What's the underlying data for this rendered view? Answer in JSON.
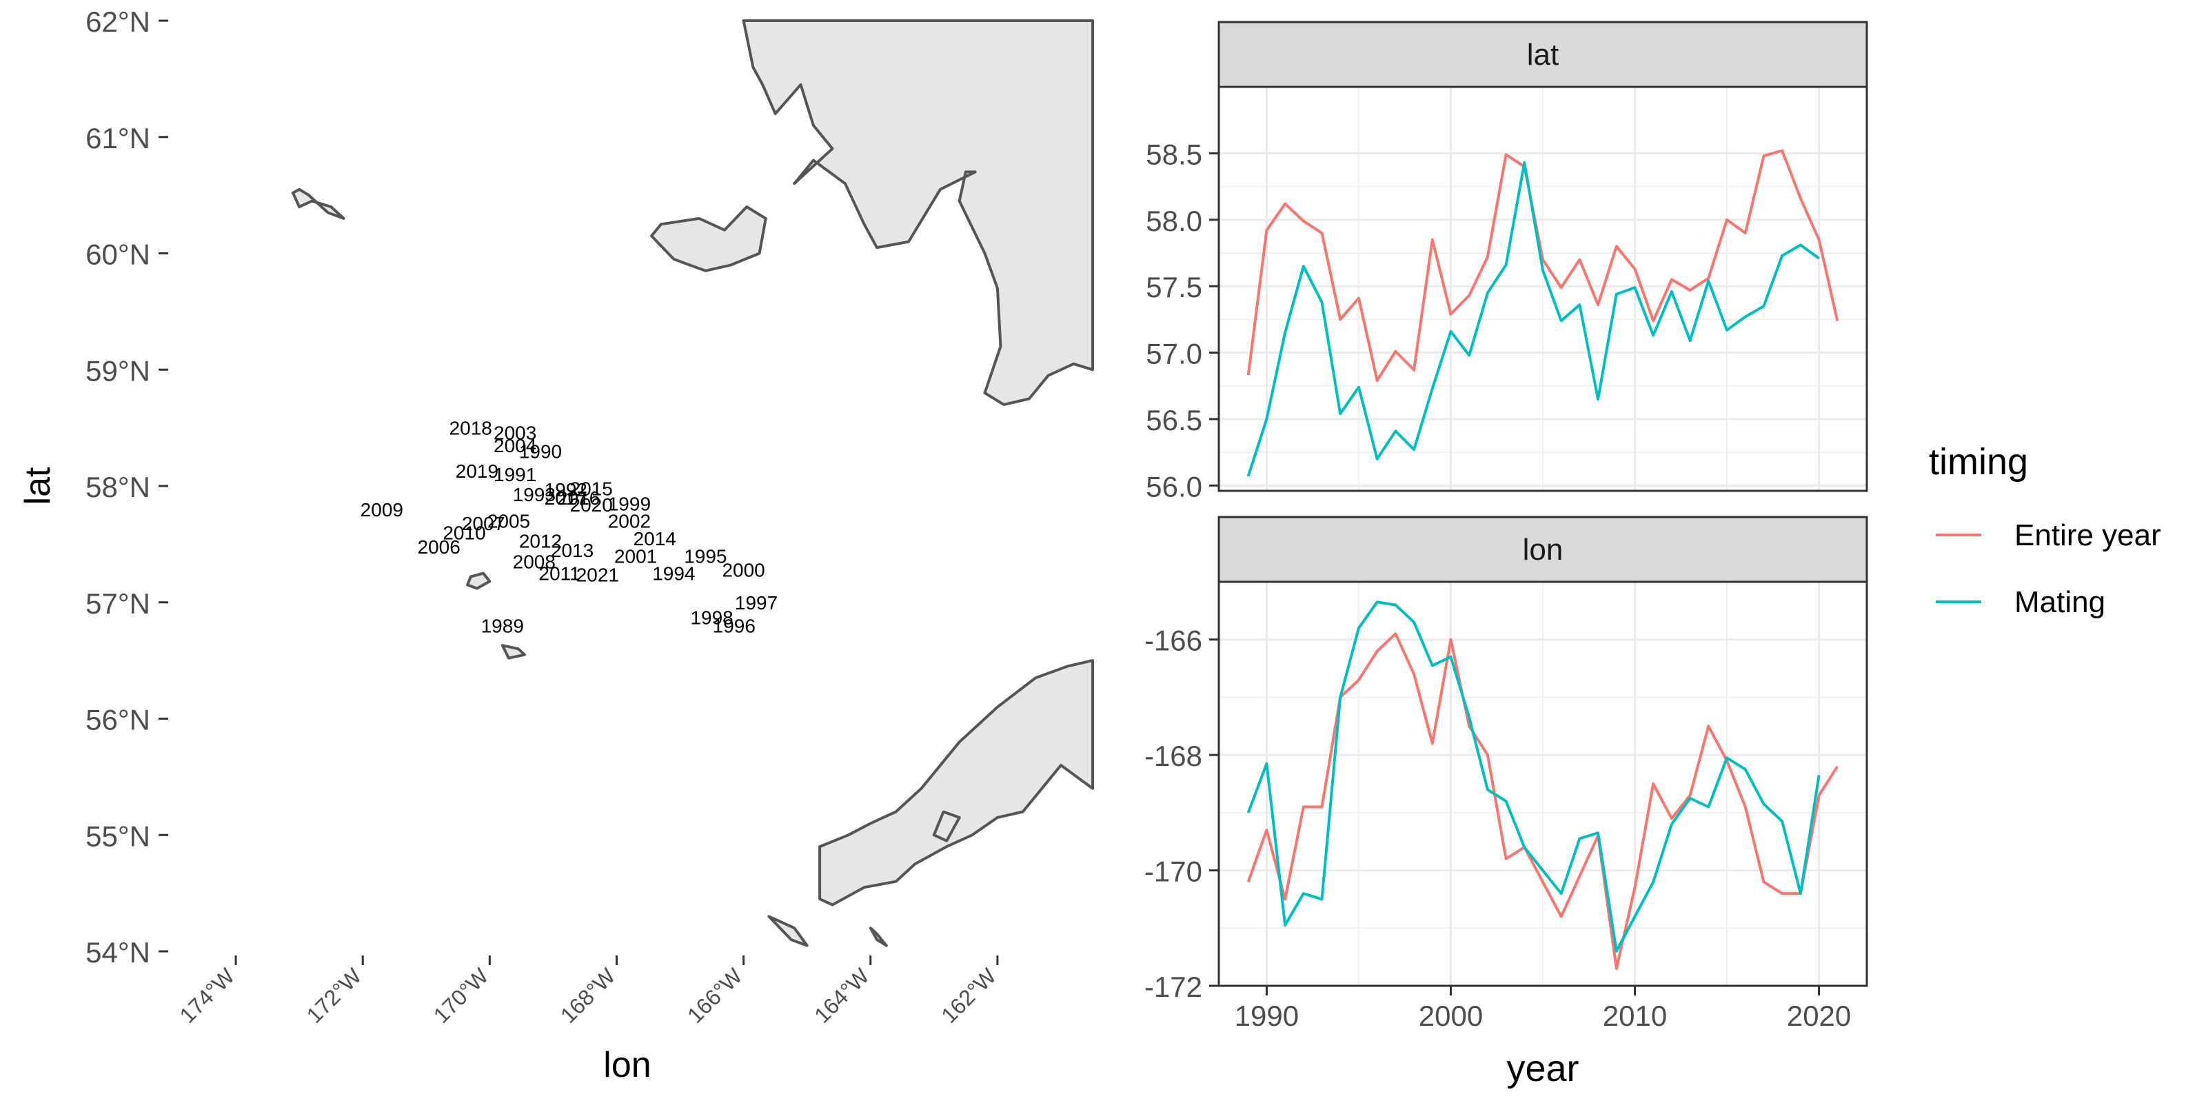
{
  "chart_data": [
    {
      "type": "map",
      "xlabel": "lon",
      "ylabel": "lat",
      "xlim": [
        -175,
        -160.5
      ],
      "ylim": [
        54,
        62
      ],
      "x_ticks": [
        {
          "value": -174,
          "label": "174°W"
        },
        {
          "value": -172,
          "label": "172°W"
        },
        {
          "value": -170,
          "label": "170°W"
        },
        {
          "value": -168,
          "label": "168°W"
        },
        {
          "value": -166,
          "label": "166°W"
        },
        {
          "value": -164,
          "label": "164°W"
        },
        {
          "value": -162,
          "label": "162°W"
        }
      ],
      "y_ticks": [
        {
          "value": 54,
          "label": "54°N"
        },
        {
          "value": 55,
          "label": "55°N"
        },
        {
          "value": 56,
          "label": "56°N"
        },
        {
          "value": 57,
          "label": "57°N"
        },
        {
          "value": 58,
          "label": "58°N"
        },
        {
          "value": 59,
          "label": "59°N"
        },
        {
          "value": 60,
          "label": "60°N"
        },
        {
          "value": 61,
          "label": "61°N"
        },
        {
          "value": 62,
          "label": "62°N"
        }
      ],
      "land_fill": "#e6e6e6",
      "coast_color": "#555555",
      "points": [
        {
          "label": "1989",
          "lon": -169.8,
          "lat": 56.8
        },
        {
          "label": "1990",
          "lon": -169.2,
          "lat": 58.3
        },
        {
          "label": "1991",
          "lon": -169.6,
          "lat": 58.1
        },
        {
          "label": "1992",
          "lon": -168.8,
          "lat": 57.97
        },
        {
          "label": "1993",
          "lon": -169.3,
          "lat": 57.93
        },
        {
          "label": "1994",
          "lon": -167.1,
          "lat": 57.25
        },
        {
          "label": "1995",
          "lon": -166.6,
          "lat": 57.4
        },
        {
          "label": "1996",
          "lon": -166.15,
          "lat": 56.8
        },
        {
          "label": "1997",
          "lon": -165.8,
          "lat": 57.0
        },
        {
          "label": "1998",
          "lon": -166.5,
          "lat": 56.87
        },
        {
          "label": "1999",
          "lon": -167.8,
          "lat": 57.85
        },
        {
          "label": "2000",
          "lon": -166.0,
          "lat": 57.28
        },
        {
          "label": "2001",
          "lon": -167.7,
          "lat": 57.4
        },
        {
          "label": "2002",
          "lon": -167.8,
          "lat": 57.7
        },
        {
          "label": "2003",
          "lon": -169.6,
          "lat": 58.46
        },
        {
          "label": "2004",
          "lon": -169.6,
          "lat": 58.35
        },
        {
          "label": "2005",
          "lon": -169.7,
          "lat": 57.7
        },
        {
          "label": "2006",
          "lon": -170.8,
          "lat": 57.48
        },
        {
          "label": "2007",
          "lon": -170.1,
          "lat": 57.68
        },
        {
          "label": "2008",
          "lon": -169.3,
          "lat": 57.35
        },
        {
          "label": "2009",
          "lon": -171.7,
          "lat": 57.8
        },
        {
          "label": "2010",
          "lon": -170.4,
          "lat": 57.6
        },
        {
          "label": "2011",
          "lon": -168.9,
          "lat": 57.25
        },
        {
          "label": "2012",
          "lon": -169.2,
          "lat": 57.53
        },
        {
          "label": "2013",
          "lon": -168.7,
          "lat": 57.45
        },
        {
          "label": "2014",
          "lon": -167.4,
          "lat": 57.55
        },
        {
          "label": "2015",
          "lon": -168.4,
          "lat": 57.98
        },
        {
          "label": "2016",
          "lon": -168.6,
          "lat": 57.9
        },
        {
          "label": "2017",
          "lon": -168.8,
          "lat": 57.9
        },
        {
          "label": "2018",
          "lon": -170.3,
          "lat": 58.5
        },
        {
          "label": "2019",
          "lon": -170.2,
          "lat": 58.13
        },
        {
          "label": "2020",
          "lon": -168.4,
          "lat": 57.84
        },
        {
          "label": "2021",
          "lon": -168.3,
          "lat": 57.24
        }
      ]
    },
    {
      "type": "line",
      "facets": [
        "lat",
        "lon"
      ],
      "xlabel": "year",
      "xlim": [
        1987.4,
        2022.6
      ],
      "x_ticks": [
        1990,
        2000,
        2010,
        2020
      ],
      "legend": {
        "title": "timing",
        "position": "right",
        "entries": [
          "Entire year",
          "Mating"
        ]
      },
      "colors": {
        "Entire year": "#f8766d",
        "Mating": "#00bfc4"
      },
      "panels": [
        {
          "facet": "lat",
          "ylim": [
            55.96,
            59.0
          ],
          "y_ticks": [
            "56.0",
            "56.5",
            "57.0",
            "57.5",
            "58.0",
            "58.5"
          ],
          "series": [
            {
              "name": "Entire year",
              "x": [
                1989,
                1990,
                1991,
                1992,
                1993,
                1994,
                1995,
                1996,
                1997,
                1998,
                1999,
                2000,
                2001,
                2002,
                2003,
                2004,
                2005,
                2006,
                2007,
                2008,
                2009,
                2010,
                2011,
                2012,
                2013,
                2014,
                2015,
                2016,
                2017,
                2018,
                2019,
                2020,
                2021
              ],
              "y": [
                56.83,
                57.92,
                58.12,
                57.99,
                57.9,
                57.25,
                57.41,
                56.79,
                57.01,
                56.87,
                57.85,
                57.29,
                57.43,
                57.72,
                58.49,
                58.4,
                57.7,
                57.49,
                57.7,
                57.36,
                57.8,
                57.63,
                57.24,
                57.55,
                57.47,
                57.56,
                58.0,
                57.9,
                58.48,
                58.52,
                58.16,
                57.85,
                57.24
              ]
            },
            {
              "name": "Mating",
              "x": [
                1989,
                1990,
                1991,
                1992,
                1993,
                1994,
                1995,
                1996,
                1997,
                1998,
                1999,
                2000,
                2001,
                2002,
                2003,
                2004,
                2005,
                2006,
                2007,
                2008,
                2009,
                2010,
                2011,
                2012,
                2013,
                2014,
                2015,
                2016,
                2017,
                2018,
                2019,
                2020
              ],
              "y": [
                56.07,
                56.5,
                57.15,
                57.65,
                57.38,
                56.54,
                56.74,
                56.2,
                56.41,
                56.27,
                56.73,
                57.16,
                56.98,
                57.45,
                57.66,
                58.43,
                57.62,
                57.24,
                57.36,
                56.65,
                57.44,
                57.49,
                57.13,
                57.46,
                57.09,
                57.54,
                57.17,
                57.27,
                57.35,
                57.73,
                57.81,
                57.71
              ]
            }
          ]
        },
        {
          "facet": "lon",
          "ylim": [
            -172,
            -165
          ],
          "y_ticks": [
            "-166",
            "-168",
            "-170",
            "-172"
          ],
          "series": [
            {
              "name": "Entire year",
              "x": [
                1989,
                1990,
                1991,
                1992,
                1993,
                1994,
                1995,
                1996,
                1997,
                1998,
                1999,
                2000,
                2001,
                2002,
                2003,
                2004,
                2005,
                2006,
                2007,
                2008,
                2009,
                2010,
                2011,
                2012,
                2013,
                2014,
                2015,
                2016,
                2017,
                2018,
                2019,
                2020,
                2021
              ],
              "y": [
                -170.2,
                -169.3,
                -170.5,
                -168.9,
                -168.9,
                -167.0,
                -166.7,
                -166.2,
                -165.9,
                -166.6,
                -167.8,
                -166.0,
                -167.5,
                -168.0,
                -169.8,
                -169.6,
                -170.2,
                -170.8,
                -170.1,
                -169.4,
                -171.7,
                -170.3,
                -168.5,
                -169.1,
                -168.7,
                -167.5,
                -168.1,
                -168.9,
                -170.2,
                -170.4,
                -170.4,
                -168.7,
                -168.2
              ]
            },
            {
              "name": "Mating",
              "x": [
                1989,
                1990,
                1991,
                1992,
                1993,
                1994,
                1995,
                1996,
                1997,
                1998,
                1999,
                2000,
                2001,
                2002,
                2003,
                2004,
                2005,
                2006,
                2007,
                2008,
                2009,
                2010,
                2011,
                2012,
                2013,
                2014,
                2015,
                2016,
                2017,
                2018,
                2019,
                2020
              ],
              "y": [
                -169.0,
                -168.15,
                -170.95,
                -170.4,
                -170.5,
                -167.0,
                -165.8,
                -165.35,
                -165.4,
                -165.7,
                -166.45,
                -166.3,
                -167.35,
                -168.6,
                -168.8,
                -169.6,
                -170.0,
                -170.4,
                -169.45,
                -169.35,
                -171.4,
                -170.8,
                -170.2,
                -169.2,
                -168.75,
                -168.9,
                -168.05,
                -168.25,
                -168.85,
                -169.15,
                -170.4,
                -168.35
              ]
            }
          ]
        }
      ]
    }
  ]
}
